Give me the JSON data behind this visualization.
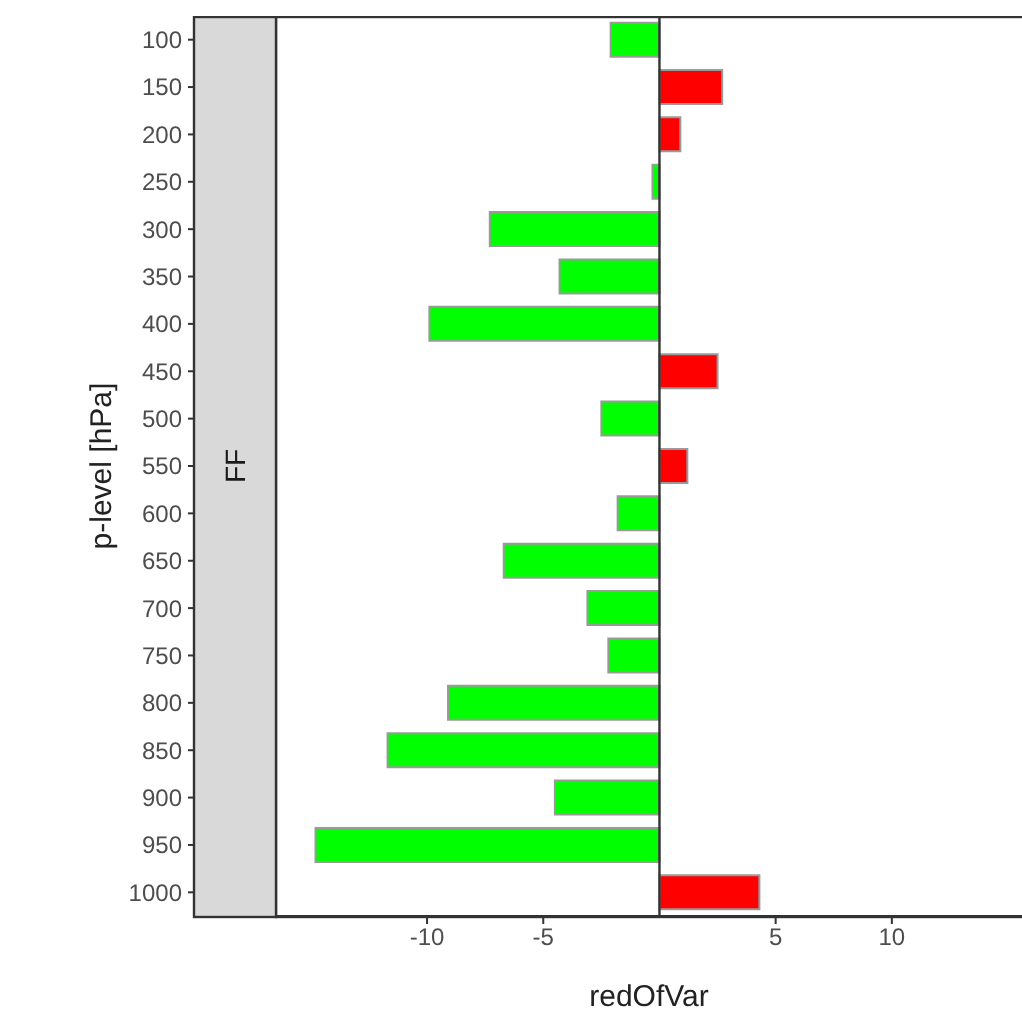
{
  "chart_data": {
    "type": "bar",
    "orientation": "horizontal",
    "xlabel": "redOfVar",
    "ylabel": "p-level [hPa]",
    "categories": [
      "100",
      "150",
      "200",
      "250",
      "300",
      "350",
      "400",
      "450",
      "500",
      "550",
      "600",
      "650",
      "700",
      "750",
      "800",
      "850",
      "900",
      "950",
      "1000"
    ],
    "values": [
      -2.1,
      2.7,
      0.9,
      -0.3,
      -7.3,
      -4.3,
      -9.9,
      2.5,
      -2.5,
      1.2,
      -1.8,
      -6.7,
      -3.1,
      -2.2,
      -9.1,
      -11.7,
      -4.5,
      -14.8,
      4.3
    ],
    "colors": [
      "#00ff00",
      "#ff0000",
      "#ff0000",
      "#00ff00",
      "#00ff00",
      "#00ff00",
      "#00ff00",
      "#ff0000",
      "#00ff00",
      "#ff0000",
      "#00ff00",
      "#00ff00",
      "#00ff00",
      "#00ff00",
      "#00ff00",
      "#00ff00",
      "#00ff00",
      "#00ff00",
      "#ff0000"
    ],
    "xlim": [
      -16.5,
      15.6
    ],
    "xticks": [
      -10,
      -5,
      5,
      10
    ],
    "ref_lines": [
      {
        "axis": "x",
        "value": 0,
        "color": "#333333"
      }
    ],
    "annotations": [
      "FF"
    ],
    "grid": false,
    "legend": false
  }
}
